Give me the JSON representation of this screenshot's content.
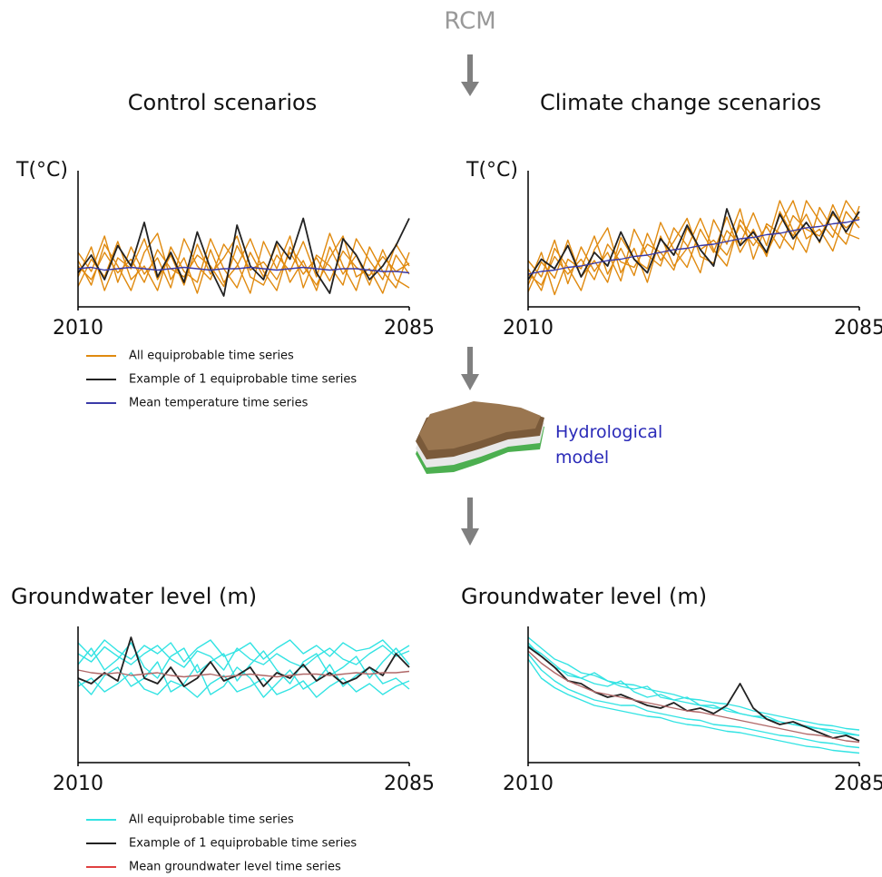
{
  "title": "RCM",
  "model_label": "Hydrological model",
  "chart_data": [
    {
      "type": "line",
      "title": "Control scenarios",
      "ylabel": "T(°C)",
      "x": [
        2010,
        2013,
        2016,
        2019,
        2022,
        2025,
        2028,
        2031,
        2034,
        2037,
        2040,
        2043,
        2046,
        2049,
        2052,
        2055,
        2058,
        2061,
        2064,
        2067,
        2070,
        2073,
        2076,
        2079,
        2082,
        2085
      ],
      "xlim": [
        2010,
        2085
      ],
      "xticks": [
        2010,
        2085
      ],
      "ylim": [
        0,
        100
      ],
      "series": [
        {
          "color": "#e08a0f",
          "values": [
            30,
            20,
            40,
            25,
            35,
            18,
            42,
            28,
            22,
            38,
            30,
            15,
            45,
            27,
            33,
            20,
            40,
            24,
            36,
            19,
            41,
            29,
            23,
            37,
            26,
            32
          ]
        },
        {
          "color": "#e08a0f",
          "values": [
            15,
            35,
            22,
            48,
            20,
            30,
            12,
            44,
            26,
            18,
            50,
            28,
            14,
            40,
            22,
            46,
            18,
            34,
            12,
            44,
            24,
            38,
            16,
            42,
            20,
            14
          ]
        },
        {
          "color": "#e08a0f",
          "values": [
            40,
            26,
            52,
            18,
            44,
            24,
            36,
            14,
            50,
            30,
            20,
            46,
            32,
            10,
            48,
            28,
            52,
            14,
            38,
            30,
            16,
            50,
            34,
            20,
            46,
            30
          ]
        },
        {
          "color": "#e08a0f",
          "values": [
            22,
            44,
            12,
            36,
            28,
            50,
            20,
            38,
            16,
            46,
            24,
            36,
            52,
            22,
            16,
            38,
            26,
            48,
            22,
            54,
            30,
            12,
            44,
            26,
            14,
            40
          ]
        },
        {
          "color": "#e08a0f",
          "values": [
            34,
            16,
            46,
            30,
            12,
            40,
            54,
            20,
            36,
            10,
            42,
            18,
            30,
            50,
            26,
            12,
            44,
            30,
            16,
            36,
            52,
            22,
            28,
            10,
            38,
            24
          ]
        },
        {
          "color": "#222222",
          "values": [
            25,
            38,
            20,
            45,
            30,
            62,
            22,
            40,
            18,
            55,
            28,
            8,
            60,
            30,
            20,
            48,
            35,
            65,
            25,
            10,
            50,
            38,
            20,
            30,
            45,
            65
          ]
        },
        {
          "color": "#3a3aa8",
          "values": [
            28,
            29,
            27,
            28,
            29,
            28,
            27,
            28,
            29,
            28,
            27,
            28,
            28,
            29,
            28,
            27,
            28,
            29,
            28,
            27,
            28,
            28,
            27,
            26,
            26,
            25
          ]
        }
      ]
    },
    {
      "type": "line",
      "title": "Climate change scenarios",
      "ylabel": "T(°C)",
      "x": [
        2010,
        2013,
        2016,
        2019,
        2022,
        2025,
        2028,
        2031,
        2034,
        2037,
        2040,
        2043,
        2046,
        2049,
        2052,
        2055,
        2058,
        2061,
        2064,
        2067,
        2070,
        2073,
        2076,
        2079,
        2082,
        2085
      ],
      "xlim": [
        2010,
        2085
      ],
      "xticks": [
        2010,
        2085
      ],
      "ylim": [
        0,
        100
      ],
      "series": [
        {
          "color": "#e08a0f",
          "values": [
            24,
            16,
            37,
            24,
            35,
            20,
            46,
            33,
            29,
            46,
            40,
            27,
            58,
            42,
            49,
            38,
            60,
            45,
            59,
            43,
            67,
            57,
            52,
            68,
            58,
            66
          ]
        },
        {
          "color": "#e08a0f",
          "values": [
            11,
            33,
            21,
            49,
            22,
            34,
            18,
            51,
            35,
            28,
            62,
            42,
            29,
            57,
            40,
            66,
            40,
            57,
            37,
            70,
            52,
            68,
            47,
            75,
            54,
            50
          ]
        },
        {
          "color": "#e08a0f",
          "values": [
            34,
            22,
            49,
            17,
            44,
            26,
            40,
            19,
            57,
            38,
            30,
            58,
            45,
            25,
            64,
            46,
            72,
            35,
            61,
            54,
            42,
            78,
            63,
            51,
            78,
            64
          ]
        },
        {
          "color": "#e08a0f",
          "values": [
            16,
            40,
            9,
            35,
            28,
            52,
            24,
            43,
            23,
            54,
            34,
            48,
            65,
            37,
            32,
            56,
            46,
            69,
            45,
            78,
            56,
            40,
            73,
            57,
            46,
            74
          ]
        },
        {
          "color": "#e08a0f",
          "values": [
            28,
            12,
            43,
            29,
            12,
            42,
            58,
            25,
            43,
            18,
            52,
            30,
            43,
            65,
            42,
            30,
            64,
            51,
            39,
            60,
            78,
            50,
            57,
            41,
            70,
            58
          ]
        },
        {
          "color": "#222222",
          "values": [
            20,
            35,
            28,
            45,
            22,
            40,
            30,
            55,
            35,
            25,
            50,
            38,
            60,
            42,
            30,
            72,
            45,
            55,
            40,
            68,
            50,
            62,
            48,
            70,
            55,
            70
          ]
        },
        {
          "color": "#3a3aa8",
          "values": [
            24,
            26,
            27,
            29,
            30,
            32,
            34,
            35,
            37,
            38,
            40,
            42,
            43,
            45,
            46,
            48,
            50,
            51,
            53,
            54,
            56,
            58,
            59,
            61,
            62,
            64
          ]
        }
      ]
    },
    {
      "type": "line",
      "ylabel": "Groundwater level (m)",
      "x": [
        2010,
        2013,
        2016,
        2019,
        2022,
        2025,
        2028,
        2031,
        2034,
        2037,
        2040,
        2043,
        2046,
        2049,
        2052,
        2055,
        2058,
        2061,
        2064,
        2067,
        2070,
        2073,
        2076,
        2079,
        2082,
        2085
      ],
      "xlim": [
        2010,
        2085
      ],
      "xticks": [
        2010,
        2085
      ],
      "ylim": [
        0,
        100
      ],
      "series": [
        {
          "color": "#33e3e3",
          "values": [
            80,
            74,
            85,
            78,
            72,
            80,
            86,
            76,
            70,
            82,
            78,
            68,
            84,
            76,
            72,
            80,
            74,
            70,
            78,
            84,
            76,
            72,
            80,
            86,
            78,
            82
          ]
        },
        {
          "color": "#33e3e3",
          "values": [
            56,
            62,
            52,
            58,
            66,
            54,
            50,
            60,
            56,
            48,
            58,
            64,
            52,
            56,
            62,
            50,
            54,
            60,
            48,
            56,
            62,
            52,
            58,
            50,
            56,
            60
          ]
        },
        {
          "color": "#33e3e3",
          "values": [
            72,
            84,
            68,
            76,
            88,
            70,
            62,
            78,
            84,
            66,
            74,
            80,
            60,
            72,
            82,
            68,
            58,
            74,
            80,
            64,
            70,
            78,
            62,
            74,
            84,
            72
          ]
        },
        {
          "color": "#33e3e3",
          "values": [
            60,
            50,
            64,
            70,
            56,
            62,
            74,
            52,
            58,
            72,
            50,
            56,
            70,
            62,
            48,
            58,
            68,
            54,
            60,
            72,
            56,
            64,
            70,
            58,
            62,
            54
          ]
        },
        {
          "color": "#33e3e3",
          "values": [
            88,
            78,
            90,
            82,
            76,
            86,
            80,
            88,
            74,
            84,
            90,
            78,
            82,
            88,
            76,
            84,
            90,
            80,
            86,
            78,
            88,
            82,
            84,
            90,
            80,
            86
          ]
        },
        {
          "color": "#222222",
          "values": [
            62,
            58,
            66,
            60,
            92,
            62,
            58,
            70,
            56,
            62,
            74,
            60,
            64,
            70,
            56,
            66,
            62,
            72,
            60,
            66,
            58,
            62,
            70,
            64,
            80,
            70
          ]
        },
        {
          "color": "#b06868",
          "values": [
            68,
            66,
            65,
            66,
            64,
            65,
            66,
            64,
            63,
            64,
            65,
            63,
            64,
            65,
            64,
            63,
            64,
            65,
            65,
            64,
            65,
            66,
            65,
            66,
            66,
            67
          ]
        }
      ]
    },
    {
      "type": "line",
      "ylabel": "Groundwater level (m)",
      "x": [
        2010,
        2013,
        2016,
        2019,
        2022,
        2025,
        2028,
        2031,
        2034,
        2037,
        2040,
        2043,
        2046,
        2049,
        2052,
        2055,
        2058,
        2061,
        2064,
        2067,
        2070,
        2073,
        2076,
        2079,
        2082,
        2085
      ],
      "xlim": [
        2010,
        2085
      ],
      "xticks": [
        2010,
        2085
      ],
      "ylim": [
        0,
        100
      ],
      "series": [
        {
          "color": "#33e3e3",
          "values": [
            92,
            84,
            76,
            72,
            66,
            64,
            60,
            58,
            57,
            54,
            52,
            50,
            47,
            46,
            44,
            43,
            41,
            38,
            36,
            34,
            32,
            30,
            28,
            27,
            25,
            24
          ]
        },
        {
          "color": "#33e3e3",
          "values": [
            76,
            62,
            55,
            50,
            46,
            42,
            40,
            38,
            36,
            34,
            33,
            30,
            28,
            27,
            25,
            23,
            22,
            20,
            18,
            16,
            14,
            12,
            11,
            9,
            8,
            7
          ]
        },
        {
          "color": "#33e3e3",
          "values": [
            86,
            80,
            72,
            64,
            62,
            58,
            56,
            60,
            52,
            48,
            50,
            46,
            44,
            42,
            42,
            38,
            36,
            34,
            32,
            30,
            28,
            27,
            25,
            24,
            22,
            20
          ]
        },
        {
          "color": "#33e3e3",
          "values": [
            80,
            68,
            60,
            54,
            50,
            46,
            44,
            42,
            42,
            38,
            36,
            34,
            32,
            31,
            28,
            27,
            26,
            24,
            22,
            20,
            19,
            17,
            15,
            14,
            12,
            11
          ]
        },
        {
          "color": "#33e3e3",
          "values": [
            88,
            78,
            70,
            66,
            62,
            66,
            60,
            56,
            54,
            56,
            48,
            46,
            48,
            42,
            40,
            40,
            36,
            34,
            34,
            30,
            28,
            26,
            25,
            22,
            21,
            20
          ]
        },
        {
          "color": "#222222",
          "values": [
            85,
            78,
            70,
            60,
            58,
            52,
            48,
            50,
            46,
            42,
            40,
            44,
            38,
            40,
            36,
            42,
            58,
            40,
            32,
            28,
            30,
            26,
            22,
            18,
            20,
            16
          ]
        },
        {
          "color": "#b06868",
          "values": [
            82,
            73,
            66,
            60,
            56,
            52,
            50,
            48,
            46,
            44,
            42,
            40,
            38,
            37,
            35,
            33,
            31,
            29,
            27,
            25,
            23,
            21,
            20,
            18,
            16,
            15
          ]
        }
      ]
    }
  ],
  "legends": [
    {
      "entries": [
        {
          "label": "All equiprobable time series",
          "color": "#e08a0f"
        },
        {
          "label": "Example of 1 equiprobable time series",
          "color": "#222222"
        },
        {
          "label": "Mean temperature time series",
          "color": "#3a3aa8"
        }
      ]
    },
    {
      "entries": [
        {
          "label": "All equiprobable time series",
          "color": "#33e3e3"
        },
        {
          "label": "Example of 1 equiprobable time series",
          "color": "#222222"
        },
        {
          "label": "Mean groundwater level time series",
          "color": "#e04040"
        }
      ]
    }
  ]
}
